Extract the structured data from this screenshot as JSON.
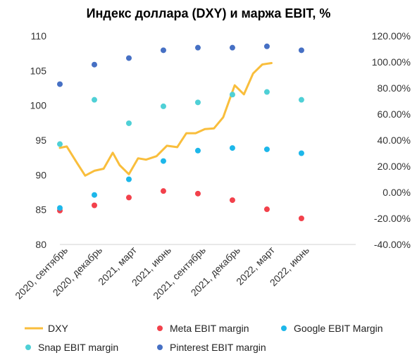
{
  "chart_data": {
    "type": "line",
    "title": "Индекс доллара (DXY) и маржа EBIT, %",
    "y_left": {
      "lim": [
        80,
        110
      ],
      "ticks": [
        "80",
        "85",
        "90",
        "95",
        "100",
        "105",
        "110"
      ]
    },
    "y_right": {
      "lim": [
        -40,
        120
      ],
      "ticks": [
        "-40.00%",
        "-20.00%",
        "0.00%",
        "20.00%",
        "40.00%",
        "60.00%",
        "80.00%",
        "100.00%",
        "120.00%"
      ]
    },
    "x_ticks": [
      {
        "label": "2020, сентябрь",
        "m": 0
      },
      {
        "label": "2020, декабрь",
        "m": 3
      },
      {
        "label": "2021, март",
        "m": 6
      },
      {
        "label": "2021, июнь",
        "m": 9
      },
      {
        "label": "2021, сентябрь",
        "m": 12
      },
      {
        "label": "2021, декабрь",
        "m": 15
      },
      {
        "label": "2022, март",
        "m": 18
      },
      {
        "label": "2022, июнь",
        "m": 21
      }
    ],
    "series": [
      {
        "name": "DXY",
        "kind": "line",
        "axis": "left",
        "color": "#F9BE3C",
        "points": [
          [
            0,
            93.9
          ],
          [
            0.6,
            94.1
          ],
          [
            1.5,
            91.7
          ],
          [
            2.2,
            89.9
          ],
          [
            3,
            90.6
          ],
          [
            3.8,
            90.9
          ],
          [
            4.6,
            93.2
          ],
          [
            5.2,
            91.4
          ],
          [
            6,
            90.1
          ],
          [
            6.8,
            92.4
          ],
          [
            7.5,
            92.2
          ],
          [
            8.4,
            92.7
          ],
          [
            9.3,
            94.2
          ],
          [
            10.2,
            94.0
          ],
          [
            11,
            96.0
          ],
          [
            11.8,
            96.0
          ],
          [
            12.6,
            96.6
          ],
          [
            13.4,
            96.7
          ],
          [
            14.2,
            98.3
          ],
          [
            15.2,
            102.9
          ],
          [
            16,
            101.6
          ],
          [
            16.8,
            104.6
          ],
          [
            17.6,
            105.9
          ],
          [
            18.4,
            106.1
          ]
        ]
      },
      {
        "name": "Meta EBIT margin",
        "kind": "scatter",
        "axis": "right",
        "color": "#F2414B",
        "points": [
          [
            0,
            -14
          ],
          [
            3,
            -10
          ],
          [
            6,
            -4
          ],
          [
            9,
            1
          ],
          [
            12,
            -1
          ],
          [
            15,
            -6
          ],
          [
            18,
            -13
          ],
          [
            21,
            -20
          ]
        ]
      },
      {
        "name": "Google EBIT Margin",
        "kind": "scatter",
        "axis": "right",
        "color": "#1DB7EA",
        "points": [
          [
            0,
            -12
          ],
          [
            3,
            -2
          ],
          [
            6,
            10
          ],
          [
            9,
            24
          ],
          [
            12,
            32
          ],
          [
            15,
            34
          ],
          [
            18,
            33
          ],
          [
            21,
            30
          ]
        ]
      },
      {
        "name": "Snap EBIT margin",
        "kind": "scatter",
        "axis": "right",
        "color": "#4FD0D6",
        "points": [
          [
            0,
            37
          ],
          [
            3,
            71
          ],
          [
            6,
            53
          ],
          [
            9,
            66
          ],
          [
            12,
            69
          ],
          [
            15,
            75
          ],
          [
            18,
            77
          ],
          [
            21,
            71
          ]
        ]
      },
      {
        "name": "Pinterest EBIT margin",
        "kind": "scatter",
        "axis": "right",
        "color": "#4670C4",
        "points": [
          [
            0,
            83
          ],
          [
            3,
            98
          ],
          [
            6,
            103
          ],
          [
            9,
            109
          ],
          [
            12,
            111
          ],
          [
            15,
            111
          ],
          [
            18,
            112
          ],
          [
            21,
            109
          ]
        ]
      }
    ],
    "legend": [
      {
        "label": "DXY",
        "kind": "line",
        "color": "#F9BE3C"
      },
      {
        "label": "Meta EBIT margin",
        "kind": "dot",
        "color": "#F2414B"
      },
      {
        "label": "Google EBIT Margin",
        "kind": "dot",
        "color": "#1DB7EA"
      },
      {
        "label": "Snap EBIT margin",
        "kind": "dot",
        "color": "#4FD0D6"
      },
      {
        "label": "Pinterest EBIT margin",
        "kind": "dot",
        "color": "#4670C4"
      }
    ],
    "grid": false,
    "legend_position": "bottom"
  }
}
